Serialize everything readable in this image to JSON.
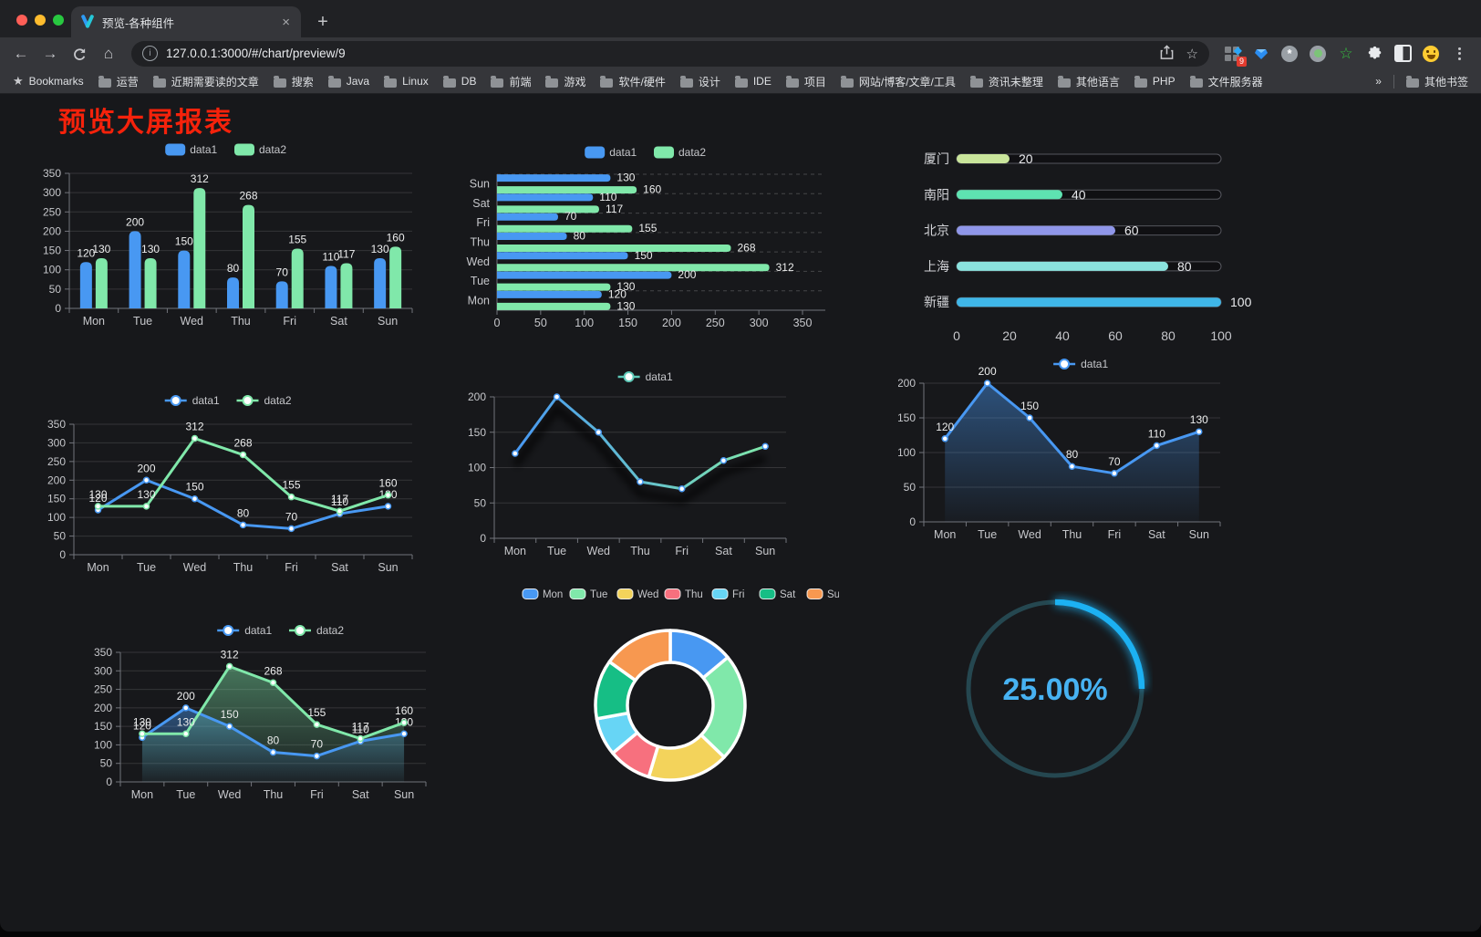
{
  "browser": {
    "tab_title": "预览-各种组件",
    "url": "127.0.0.1:3000/#/chart/preview/9",
    "extension_badge": "9",
    "bookmarks_label": "Bookmarks",
    "bookmarks": [
      "运营",
      "近期需要读的文章",
      "搜索",
      "Java",
      "Linux",
      "DB",
      "前端",
      "游戏",
      "软件/硬件",
      "设计",
      "IDE",
      "项目",
      "网站/博客/文章/工具",
      "资讯未整理",
      "其他语言",
      "PHP",
      "文件服务器"
    ],
    "overflow": "»",
    "other_bookmarks": "其他书签"
  },
  "icons": {
    "back": "←",
    "forward": "→",
    "home": "⌂",
    "close": "×",
    "new_tab": "+",
    "star": "☆",
    "bookmarks_star": "★",
    "info": "i",
    "asterisk": "*",
    "green_star": "☆",
    "diamond": "◆",
    "gem": "◆"
  },
  "page": {
    "title": "预览大屏报表",
    "title_color": "#F5220B"
  },
  "chart_data": [
    {
      "id": "bar-vertical",
      "type": "bar",
      "categories": [
        "Mon",
        "Tue",
        "Wed",
        "Thu",
        "Fri",
        "Sat",
        "Sun"
      ],
      "series": [
        {
          "name": "data1",
          "color": "#4898F2",
          "values": [
            120,
            200,
            150,
            80,
            70,
            110,
            130
          ]
        },
        {
          "name": "data2",
          "color": "#80E8AA",
          "values": [
            130,
            130,
            312,
            268,
            155,
            117,
            160
          ]
        }
      ],
      "ylim": [
        0,
        350
      ],
      "ytick": 50,
      "show_labels": true,
      "legend_position": "top"
    },
    {
      "id": "bar-horizontal",
      "type": "hbar",
      "categories": [
        "Mon",
        "Tue",
        "Wed",
        "Thu",
        "Fri",
        "Sat",
        "Sun"
      ],
      "order": [
        "Sun",
        "Sat",
        "Fri",
        "Thu",
        "Wed",
        "Tue",
        "Mon"
      ],
      "series": [
        {
          "name": "data1",
          "color": "#4898F2",
          "values": [
            120,
            200,
            150,
            80,
            70,
            110,
            130
          ]
        },
        {
          "name": "data2",
          "color": "#80E8AA",
          "values": [
            130,
            130,
            312,
            268,
            155,
            117,
            160
          ]
        }
      ],
      "xlim": [
        0,
        350
      ],
      "xtick": 50,
      "show_labels": true,
      "legend_position": "top"
    },
    {
      "id": "progress-bars",
      "type": "progress",
      "max": 100,
      "items": [
        {
          "label": "厦门",
          "value": 20,
          "color": "#C9E59B"
        },
        {
          "label": "南阳",
          "value": 40,
          "color": "#5EE3B1"
        },
        {
          "label": "北京",
          "value": 60,
          "color": "#8F96E9"
        },
        {
          "label": "上海",
          "value": 80,
          "color": "#8BE3DF"
        },
        {
          "label": "新疆",
          "value": 100,
          "color": "#3FB6E8"
        }
      ],
      "xticks": [
        0,
        20,
        40,
        60,
        80,
        100
      ]
    },
    {
      "id": "line-basic",
      "type": "line",
      "categories": [
        "Mon",
        "Tue",
        "Wed",
        "Thu",
        "Fri",
        "Sat",
        "Sun"
      ],
      "series": [
        {
          "name": "data1",
          "color": "#4898F2",
          "values": [
            120,
            200,
            150,
            80,
            70,
            110,
            130
          ]
        },
        {
          "name": "data2",
          "color": "#80E8AA",
          "values": [
            130,
            130,
            312,
            268,
            155,
            117,
            160
          ]
        }
      ],
      "ylim": [
        0,
        350
      ],
      "ytick": 50,
      "show_labels": true,
      "legend_position": "top"
    },
    {
      "id": "line-gradient",
      "type": "line",
      "categories": [
        "Mon",
        "Tue",
        "Wed",
        "Thu",
        "Fri",
        "Sat",
        "Sun"
      ],
      "series": [
        {
          "name": "data1",
          "color_start": "#4898F2",
          "color_end": "#80E8AA",
          "legend_color": "#5EC9B8",
          "values": [
            120,
            200,
            150,
            80,
            70,
            110,
            130
          ]
        }
      ],
      "ylim": [
        0,
        200
      ],
      "ytick": 50,
      "show_labels": false,
      "shadow": true,
      "legend_position": "top"
    },
    {
      "id": "line-area-blue",
      "type": "line",
      "categories": [
        "Mon",
        "Tue",
        "Wed",
        "Thu",
        "Fri",
        "Sat",
        "Sun"
      ],
      "series": [
        {
          "name": "data1",
          "color": "#4898F2",
          "area": true,
          "values": [
            120,
            200,
            150,
            80,
            70,
            110,
            130
          ]
        }
      ],
      "ylim": [
        0,
        200
      ],
      "ytick": 50,
      "show_labels": true,
      "legend_position": "top"
    },
    {
      "id": "line-area-two",
      "type": "line",
      "categories": [
        "Mon",
        "Tue",
        "Wed",
        "Thu",
        "Fri",
        "Sat",
        "Sun"
      ],
      "series": [
        {
          "name": "data1",
          "color": "#4898F2",
          "area": true,
          "values": [
            120,
            200,
            150,
            80,
            70,
            110,
            130
          ]
        },
        {
          "name": "data2",
          "color": "#80E8AA",
          "area": true,
          "values": [
            130,
            130,
            312,
            268,
            155,
            117,
            160
          ]
        }
      ],
      "ylim": [
        0,
        350
      ],
      "ytick": 50,
      "show_labels": true,
      "legend_position": "top"
    },
    {
      "id": "donut",
      "type": "pie",
      "labels": [
        "Mon",
        "Tue",
        "Wed",
        "Thu",
        "Fri",
        "Sat",
        "Sun"
      ],
      "values": [
        120,
        200,
        150,
        80,
        70,
        110,
        130
      ],
      "colors": [
        "#4898F2",
        "#80E8AA",
        "#F3D35B",
        "#F7707E",
        "#67D5F5",
        "#16BE85",
        "#F79850"
      ],
      "legend_position": "top"
    },
    {
      "id": "gauge",
      "type": "gauge",
      "percent": 25,
      "value_text": "25.00%",
      "color": "#1CB1F2",
      "track_color": "#254750",
      "text_color": "#47B2F2"
    }
  ]
}
